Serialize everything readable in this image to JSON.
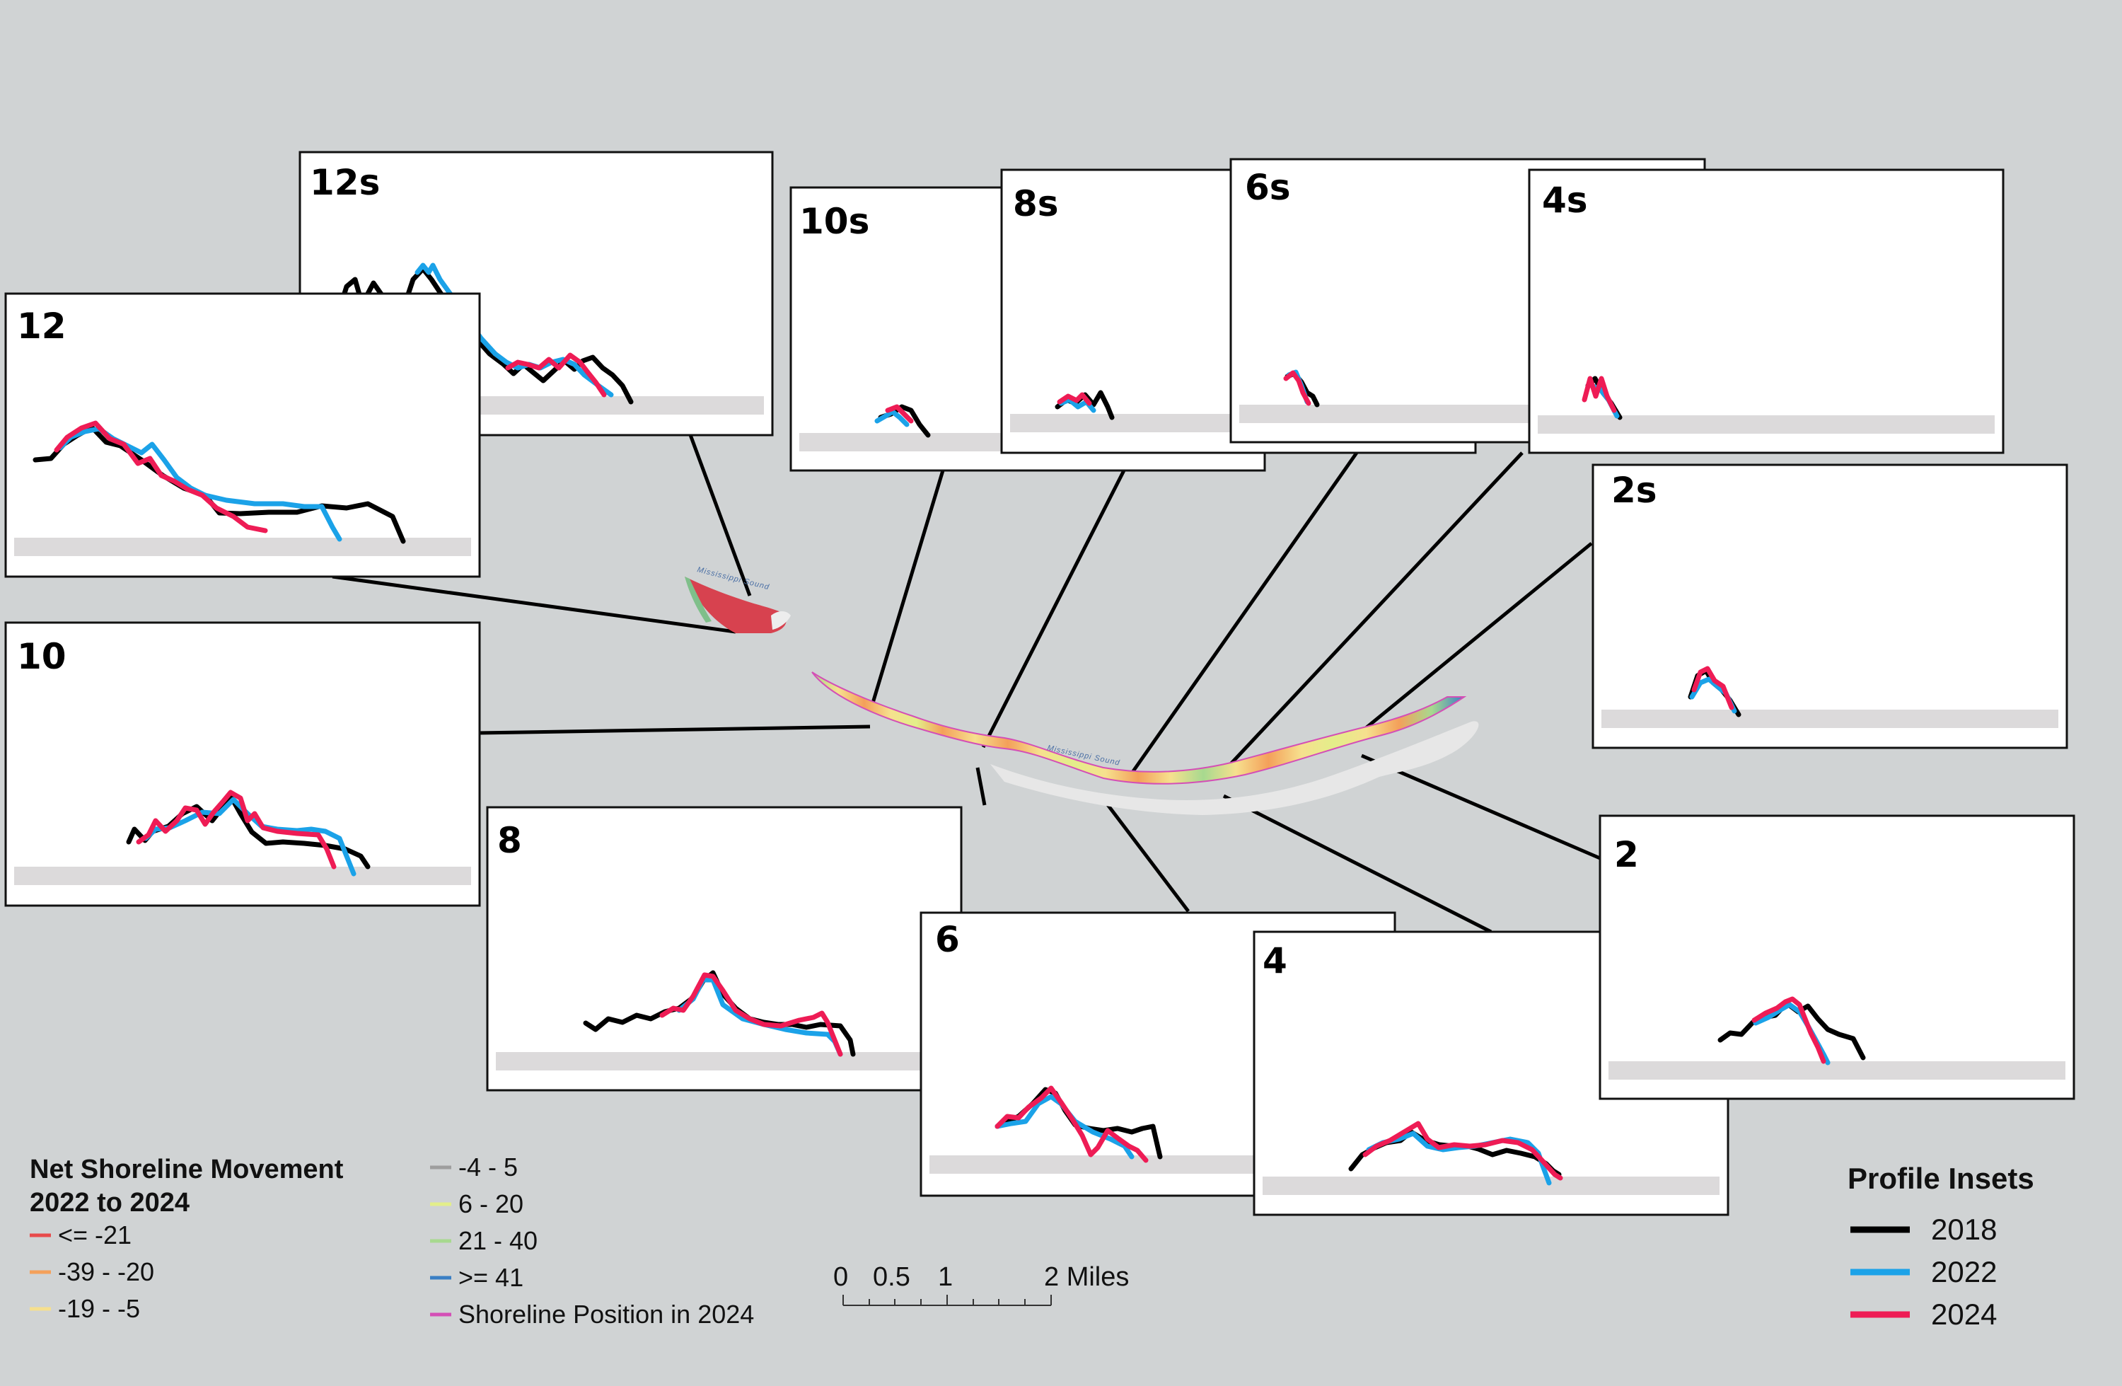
{
  "colors": {
    "background": "#d0d3d4",
    "ground": "#dcdadb",
    "y2018": "#000000",
    "y2022": "#1ba2e8",
    "y2024": "#ee1c55"
  },
  "map": {
    "water_label_west": "Mississippi Sound",
    "water_label_main": "Mississippi Sound"
  },
  "insets": [
    {
      "id": "12s",
      "label": "12s"
    },
    {
      "id": "12",
      "label": "12"
    },
    {
      "id": "10s",
      "label": "10s"
    },
    {
      "id": "8s",
      "label": "8s"
    },
    {
      "id": "6s",
      "label": "6s"
    },
    {
      "id": "4s",
      "label": "4s"
    },
    {
      "id": "2s",
      "label": "2s"
    },
    {
      "id": "10",
      "label": "10"
    },
    {
      "id": "8",
      "label": "8"
    },
    {
      "id": "6",
      "label": "6"
    },
    {
      "id": "4",
      "label": "4"
    },
    {
      "id": "2",
      "label": "2"
    }
  ],
  "legend_movement": {
    "title_line1": "Net Shoreline Movement",
    "title_line2": "2022 to 2024",
    "items": [
      {
        "label": "<= -21",
        "color": "#e84b4b"
      },
      {
        "label": "-39 - -20",
        "color": "#f4a05a"
      },
      {
        "label": "-19 - -5",
        "color": "#f6e08e"
      },
      {
        "label": "-4 - 5",
        "color": "#9e9e9e"
      },
      {
        "label": "6 - 20",
        "color": "#e3ee8a"
      },
      {
        "label": "21 - 40",
        "color": "#a7d98f"
      },
      {
        "label": ">= 41",
        "color": "#3a7fc4"
      },
      {
        "label": "Shoreline Position in 2024",
        "color": "#d44fb6"
      }
    ]
  },
  "legend_profiles": {
    "title": "Profile Insets",
    "items": [
      {
        "label": "2018",
        "color": "#000000"
      },
      {
        "label": "2022",
        "color": "#1ba2e8"
      },
      {
        "label": "2024",
        "color": "#ee1c55"
      }
    ]
  },
  "scale_bar": {
    "ticks": [
      "0",
      "0.5",
      "1",
      "2 Miles"
    ]
  }
}
